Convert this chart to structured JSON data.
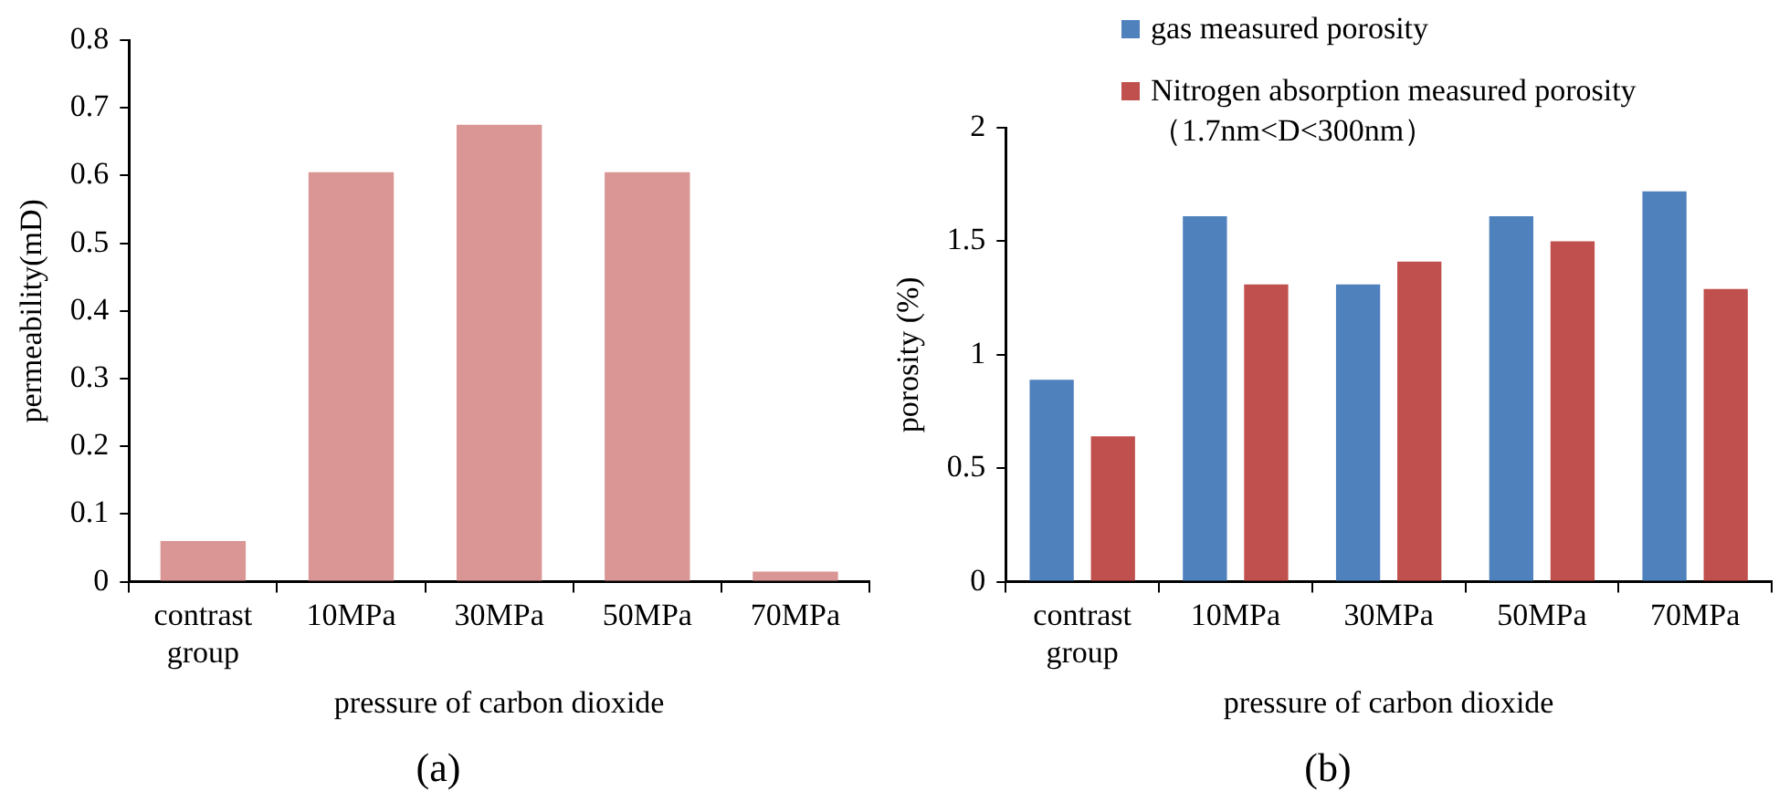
{
  "chart_data": [
    {
      "type": "bar",
      "xlabel": "pressure of carbon dioxide",
      "ylabel": "permeability(mD)",
      "categories": [
        "contrast group",
        "10MPa",
        "30MPa",
        "50MPa",
        "70MPa"
      ],
      "values": [
        0.06,
        0.605,
        0.675,
        0.605,
        0.015
      ],
      "color": "#d99694",
      "ylim": [
        0,
        0.8
      ],
      "yticks": [
        0,
        0.1,
        0.2,
        0.3,
        0.4,
        0.5,
        0.6,
        0.7,
        0.8
      ],
      "grid": false,
      "annotations": [
        "(a)"
      ]
    },
    {
      "type": "bar",
      "xlabel": "pressure of carbon dioxide",
      "ylabel": "porosity (%)",
      "categories": [
        "contrast group",
        "10MPa",
        "30MPa",
        "50MPa",
        "70MPa"
      ],
      "series": [
        {
          "name": "gas measured porosity",
          "color": "#4f81bd",
          "values": [
            0.89,
            1.61,
            1.31,
            1.61,
            1.72
          ]
        },
        {
          "name": "Nitrogen absorption measured porosity（1.7nm<D<300nm）",
          "color": "#c0504d",
          "values": [
            0.64,
            1.31,
            1.41,
            1.5,
            1.29
          ]
        }
      ],
      "ylim": [
        0,
        2
      ],
      "yticks": [
        0,
        0.5,
        1,
        1.5,
        2
      ],
      "grid": false,
      "legend": "top",
      "annotations": [
        "(b)"
      ]
    }
  ]
}
